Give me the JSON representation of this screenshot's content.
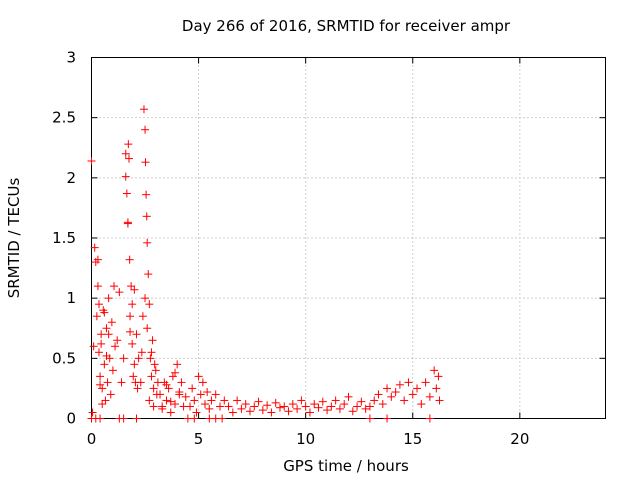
{
  "chart_data": {
    "type": "scatter",
    "title": "Day 266 of 2016, SRMTID for receiver ampr",
    "xlabel": "GPS time / hours",
    "ylabel": "SRMTID / TECUs",
    "xlim": [
      0,
      24
    ],
    "ylim": [
      0,
      3
    ],
    "xticks": [
      0,
      5,
      10,
      15,
      20
    ],
    "xtick_labels": [
      "0",
      "5",
      "10",
      "15",
      "20"
    ],
    "yticks": [
      0,
      0.5,
      1,
      1.5,
      2,
      2.5,
      3
    ],
    "ytick_labels": [
      "0",
      "0.5",
      "1",
      "1.5",
      "2",
      "2.5",
      "3"
    ],
    "grid": true,
    "marker": "plus",
    "color": "#ff0000",
    "series": [
      {
        "name": "SRMTID",
        "x": [
          0.0,
          0.05,
          0.1,
          0.15,
          0.2,
          0.25,
          0.3,
          0.35,
          0.4,
          0.45,
          0.5,
          0.55,
          0.6,
          0.65,
          0.7,
          0.75,
          0.8,
          0.85,
          0.9,
          0.95,
          1.0,
          1.05,
          1.1,
          0.3,
          0.35,
          0.4,
          0.45,
          0.5,
          0.6,
          0.7,
          0.8,
          1.2,
          1.3,
          1.4,
          1.5,
          1.6,
          1.65,
          1.7,
          1.72,
          1.75,
          1.78,
          1.8,
          1.85,
          1.9,
          1.95,
          2.0,
          2.05,
          2.1,
          2.15,
          2.2,
          1.6,
          1.7,
          1.8,
          1.9,
          2.0,
          2.3,
          2.35,
          2.4,
          2.45,
          2.5,
          2.52,
          2.55,
          2.58,
          2.6,
          2.65,
          2.7,
          2.75,
          2.8,
          2.85,
          2.9,
          2.95,
          3.0,
          3.05,
          3.1,
          2.5,
          2.6,
          2.7,
          2.8,
          2.9,
          3.2,
          3.3,
          3.4,
          3.5,
          3.6,
          3.7,
          3.8,
          3.9,
          4.0,
          4.1,
          4.2,
          4.3,
          4.4,
          3.3,
          3.5,
          3.7,
          3.9,
          4.1,
          4.6,
          4.7,
          4.8,
          4.9,
          5.0,
          5.1,
          5.2,
          5.3,
          5.4,
          5.5,
          5.6,
          5.8,
          6.0,
          6.2,
          6.4,
          6.6,
          6.8,
          7.0,
          7.2,
          7.4,
          7.6,
          7.8,
          8.0,
          8.2,
          8.4,
          8.6,
          8.8,
          9.0,
          9.2,
          9.4,
          9.6,
          9.8,
          10.0,
          10.2,
          10.4,
          10.6,
          10.8,
          11.0,
          11.2,
          11.4,
          11.6,
          11.8,
          12.0,
          12.2,
          12.4,
          12.6,
          12.8,
          13.0,
          13.2,
          13.4,
          13.6,
          13.8,
          14.0,
          14.2,
          14.4,
          14.6,
          14.8,
          15.0,
          15.2,
          15.4,
          15.6,
          15.8,
          16.0,
          16.1,
          16.2,
          16.25,
          0.0,
          0.2,
          0.4,
          1.3,
          1.5,
          2.1,
          4.5,
          4.8,
          5.5,
          5.8,
          6.1,
          13.0,
          13.8,
          15.8
        ],
        "y": [
          2.14,
          0.05,
          0.6,
          1.42,
          1.3,
          0.85,
          1.1,
          0.55,
          0.35,
          0.7,
          0.25,
          0.9,
          0.45,
          0.15,
          0.75,
          0.3,
          1.0,
          0.5,
          0.2,
          0.8,
          0.4,
          1.1,
          0.6,
          1.32,
          0.95,
          0.28,
          0.62,
          0.12,
          0.88,
          0.52,
          0.7,
          0.65,
          1.05,
          0.3,
          0.5,
          2.2,
          1.87,
          1.63,
          2.28,
          2.16,
          1.32,
          0.85,
          1.1,
          0.62,
          0.35,
          0.45,
          0.3,
          0.7,
          0.25,
          0.5,
          2.01,
          1.62,
          0.72,
          0.95,
          1.07,
          0.3,
          0.55,
          0.85,
          2.57,
          2.4,
          2.13,
          1.86,
          1.68,
          1.46,
          1.2,
          0.95,
          0.5,
          0.35,
          0.65,
          0.25,
          0.45,
          0.4,
          0.2,
          0.3,
          1.0,
          0.75,
          0.15,
          0.55,
          0.1,
          0.2,
          0.1,
          0.3,
          0.15,
          0.25,
          0.05,
          0.35,
          0.12,
          0.45,
          0.2,
          0.3,
          0.1,
          0.18,
          0.08,
          0.28,
          0.14,
          0.38,
          0.22,
          0.1,
          0.25,
          0.15,
          0.05,
          0.35,
          0.2,
          0.3,
          0.12,
          0.22,
          0.08,
          0.15,
          0.2,
          0.1,
          0.15,
          0.1,
          0.05,
          0.15,
          0.08,
          0.12,
          0.06,
          0.1,
          0.14,
          0.07,
          0.11,
          0.05,
          0.13,
          0.09,
          0.1,
          0.06,
          0.12,
          0.08,
          0.15,
          0.1,
          0.05,
          0.12,
          0.09,
          0.14,
          0.07,
          0.1,
          0.15,
          0.08,
          0.12,
          0.18,
          0.06,
          0.1,
          0.14,
          0.08,
          0.1,
          0.15,
          0.2,
          0.12,
          0.25,
          0.18,
          0.22,
          0.28,
          0.15,
          0.3,
          0.2,
          0.25,
          0.12,
          0.3,
          0.18,
          0.4,
          0.25,
          0.35,
          0.15,
          0.0,
          0.0,
          0.0,
          0.0,
          0.0,
          0.0,
          0.0,
          0.0,
          0.0,
          0.0,
          0.0,
          0.0,
          0.0,
          0.0
        ]
      }
    ]
  }
}
